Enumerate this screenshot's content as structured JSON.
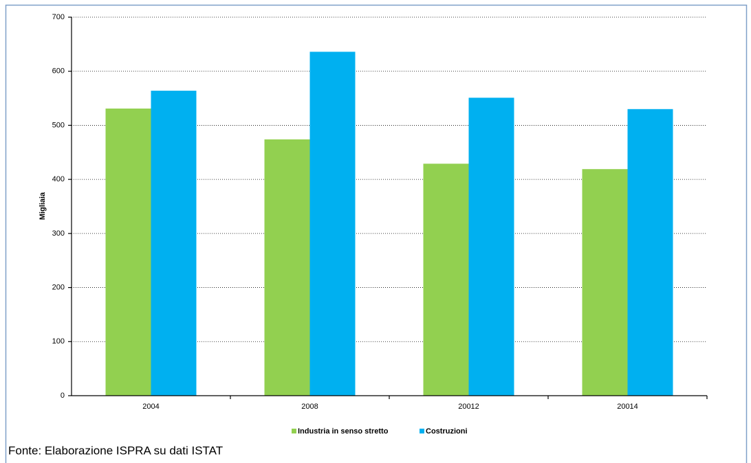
{
  "chart_data": {
    "type": "bar",
    "y_label": "Migliaia",
    "categories": [
      "2004",
      "2008",
      "20012",
      "20014"
    ],
    "series": [
      {
        "name": "Industria in senso stretto",
        "color": "#92d050",
        "values": [
          531,
          474,
          429,
          419
        ]
      },
      {
        "name": "Costruzioni",
        "color": "#00b0f0",
        "values": [
          564,
          636,
          551,
          530
        ]
      }
    ],
    "ylim": [
      0,
      700
    ],
    "yticks": [
      0,
      100,
      200,
      300,
      400,
      500,
      600,
      700
    ],
    "grid": true,
    "legend": "bottom",
    "source": "Fonte: Elaborazione ISPRA su dati ISTAT"
  }
}
